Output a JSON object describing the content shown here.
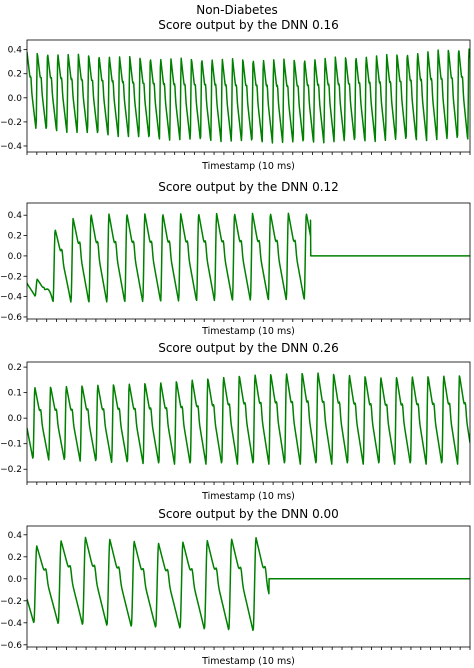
{
  "figure": {
    "suptitle": "Non-Diabetes"
  },
  "chart_data": [
    {
      "type": "line",
      "title": "Score output by the DNN  0.16",
      "xlabel": "Timestamp (10 ms)",
      "ylabel": "",
      "ylim": [
        -0.45,
        0.48
      ],
      "yticks": [
        0.4,
        0.2,
        0.0,
        -0.2,
        -0.4
      ],
      "ytick_labels": [
        "0.4",
        "0.2",
        "0.0",
        "−0.2",
        "−0.4"
      ],
      "x_minor_tick_count": 45,
      "series": [
        {
          "color": "#008000",
          "signal": {
            "x_end": 1000,
            "period": 23.2,
            "phase": 0.12,
            "signal_end": 1000,
            "flat_value": 0.0,
            "amp_keys": [
              [
                0,
                0.38
              ],
              [
                300,
                0.33
              ],
              [
                600,
                0.32
              ],
              [
                820,
                0.36
              ],
              [
                1000,
                0.42
              ]
            ],
            "low_keys": [
              [
                0,
                -0.26
              ],
              [
                300,
                -0.35
              ],
              [
                600,
                -0.38
              ],
              [
                820,
                -0.36
              ],
              [
                1000,
                -0.35
              ]
            ]
          }
        }
      ]
    },
    {
      "type": "line",
      "title": "Score output by the DNN  0.12",
      "xlabel": "Timestamp (10 ms)",
      "ylabel": "",
      "ylim": [
        -0.62,
        0.52
      ],
      "yticks": [
        0.4,
        0.2,
        0.0,
        -0.2,
        -0.4,
        -0.6
      ],
      "ytick_labels": [
        "0.4",
        "0.2",
        "0.0",
        "−0.2",
        "−0.4",
        "−0.6"
      ],
      "x_minor_tick_count": 45,
      "series": [
        {
          "color": "#008000",
          "signal": {
            "x_end": 1000,
            "period": 40.5,
            "phase": 0.55,
            "signal_end": 640,
            "flat_value": 0.0,
            "end_jump": 0.35,
            "amp_keys": [
              [
                0,
                -0.2
              ],
              [
                40,
                -0.25
              ],
              [
                60,
                0.25
              ],
              [
                120,
                0.41
              ],
              [
                640,
                0.42
              ]
            ],
            "low_keys": [
              [
                0,
                -0.35
              ],
              [
                40,
                -0.45
              ],
              [
                120,
                -0.46
              ],
              [
                640,
                -0.43
              ]
            ]
          }
        }
      ]
    },
    {
      "type": "line",
      "title": "Score output by the DNN  0.26",
      "xlabel": "Timestamp (10 ms)",
      "ylabel": "",
      "ylim": [
        -0.25,
        0.22
      ],
      "yticks": [
        0.2,
        0.1,
        0.0,
        -0.1,
        -0.2
      ],
      "ytick_labels": [
        "0.2",
        "0.1",
        "0.0",
        "−0.1",
        "−0.2"
      ],
      "x_minor_tick_count": 45,
      "series": [
        {
          "color": "#008000",
          "signal": {
            "x_end": 1000,
            "period": 35.5,
            "phase": 0.62,
            "signal_end": 1000,
            "flat_value": 0.0,
            "amp_keys": [
              [
                0,
                0.12
              ],
              [
                300,
                0.14
              ],
              [
                500,
                0.17
              ],
              [
                650,
                0.18
              ],
              [
                800,
                0.16
              ],
              [
                1000,
                0.17
              ]
            ],
            "low_keys": [
              [
                0,
                -0.16
              ],
              [
                300,
                -0.18
              ],
              [
                600,
                -0.18
              ],
              [
                1000,
                -0.18
              ]
            ]
          }
        }
      ]
    },
    {
      "type": "line",
      "title": "Score output by the DNN  0.00",
      "xlabel": "Timestamp (10 ms)",
      "ylabel": "",
      "ylim": [
        -0.62,
        0.48
      ],
      "yticks": [
        0.4,
        0.2,
        0.0,
        -0.2,
        -0.4,
        -0.6
      ],
      "ytick_labels": [
        "0.4",
        "0.2",
        "0.0",
        "−0.2",
        "−0.4",
        "−0.6"
      ],
      "x_minor_tick_count": 45,
      "series": [
        {
          "color": "#008000",
          "signal": {
            "x_end": 1000,
            "period": 55,
            "phase": 0.72,
            "signal_end": 546,
            "flat_value": 0.0,
            "amp_keys": [
              [
                0,
                0.28
              ],
              [
                120,
                0.38
              ],
              [
                300,
                0.32
              ],
              [
                546,
                0.38
              ]
            ],
            "low_keys": [
              [
                0,
                -0.4
              ],
              [
                200,
                -0.43
              ],
              [
                400,
                -0.46
              ],
              [
                546,
                -0.48
              ]
            ]
          }
        }
      ]
    }
  ]
}
